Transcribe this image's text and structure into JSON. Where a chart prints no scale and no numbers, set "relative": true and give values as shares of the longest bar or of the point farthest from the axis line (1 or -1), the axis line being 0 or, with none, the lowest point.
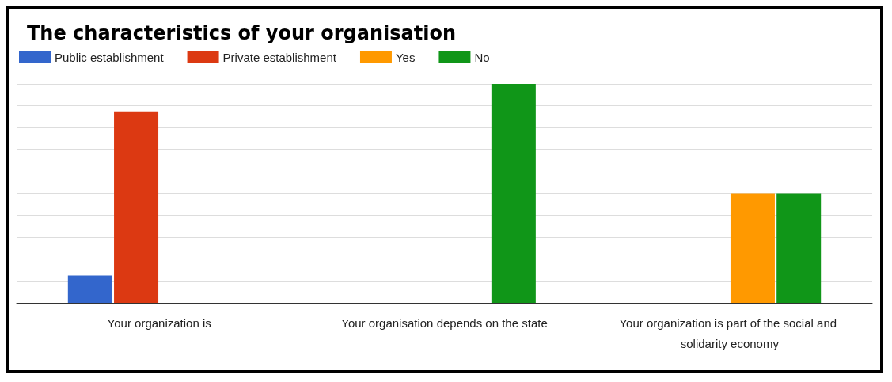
{
  "chart_data": {
    "type": "bar",
    "title": "The characteristics of your organisation",
    "relative": true,
    "grid": "y",
    "legend": "top left",
    "categories": [
      "Your organization is",
      "Your organisation depends on the state",
      "Your organization is part of the social and solidarity economy"
    ],
    "series": [
      {
        "name": "Public establishment",
        "color": "#3366cc",
        "values": [
          0.125,
          null,
          null
        ]
      },
      {
        "name": "Private establishment",
        "color": "#dc3912",
        "values": [
          0.875,
          null,
          null
        ]
      },
      {
        "name": "Yes",
        "color": "#ff9900",
        "values": [
          null,
          null,
          0.5
        ]
      },
      {
        "name": "No",
        "color": "#109618",
        "values": [
          null,
          1,
          0.5
        ]
      }
    ]
  }
}
